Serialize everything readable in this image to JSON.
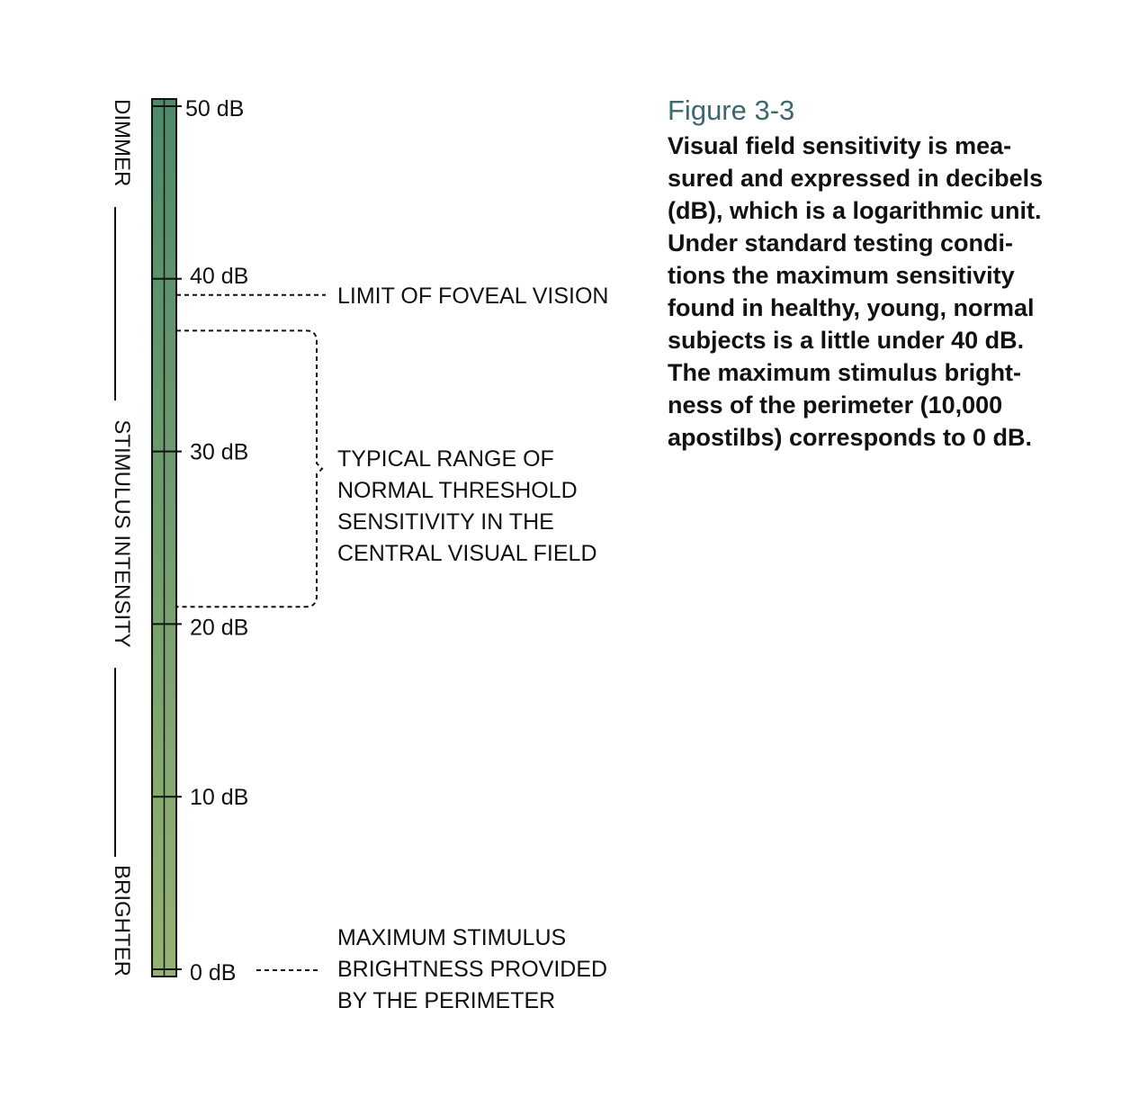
{
  "axis": {
    "top_label": "DIMMER",
    "middle_label": "STIMULUS INTENSITY",
    "bottom_label": "BRIGHTER"
  },
  "scale": {
    "ticks": [
      {
        "value": 50,
        "label": "50 dB"
      },
      {
        "value": 40,
        "label": "40 dB"
      },
      {
        "value": 30,
        "label": "30 dB"
      },
      {
        "value": 20,
        "label": "20 dB"
      },
      {
        "value": 10,
        "label": "10 dB"
      },
      {
        "value": 0,
        "label": "0 dB"
      }
    ],
    "gradient_top_color": "#4e8a6a",
    "gradient_bottom_color": "#95b272"
  },
  "annotations": {
    "foveal_limit": {
      "value": 40,
      "label": "LIMIT OF FOVEAL VISION"
    },
    "normal_range": {
      "from": 21,
      "to": 37,
      "lines": [
        "TYPICAL RANGE OF",
        "NORMAL THRESHOLD",
        "SENSITIVITY IN THE",
        "CENTRAL VISUAL FIELD"
      ]
    },
    "max_brightness": {
      "value": 0,
      "lines": [
        "MAXIMUM STIMULUS",
        "BRIGHTNESS PROVIDED",
        "BY THE PERIMETER"
      ]
    }
  },
  "caption": {
    "title": "Figure 3-3",
    "lines": [
      "Visual field sensitivity is mea-",
      "sured and expressed in decibels",
      "(dB), which is a logarithmic unit.",
      "Under standard testing condi-",
      "tions the maximum sensitivity",
      "found in healthy, young, normal",
      "subjects is a little under 40 dB.",
      "The maximum stimulus bright-",
      "ness of the perimeter (10,000",
      "apostilbs) corresponds to 0 dB."
    ]
  }
}
